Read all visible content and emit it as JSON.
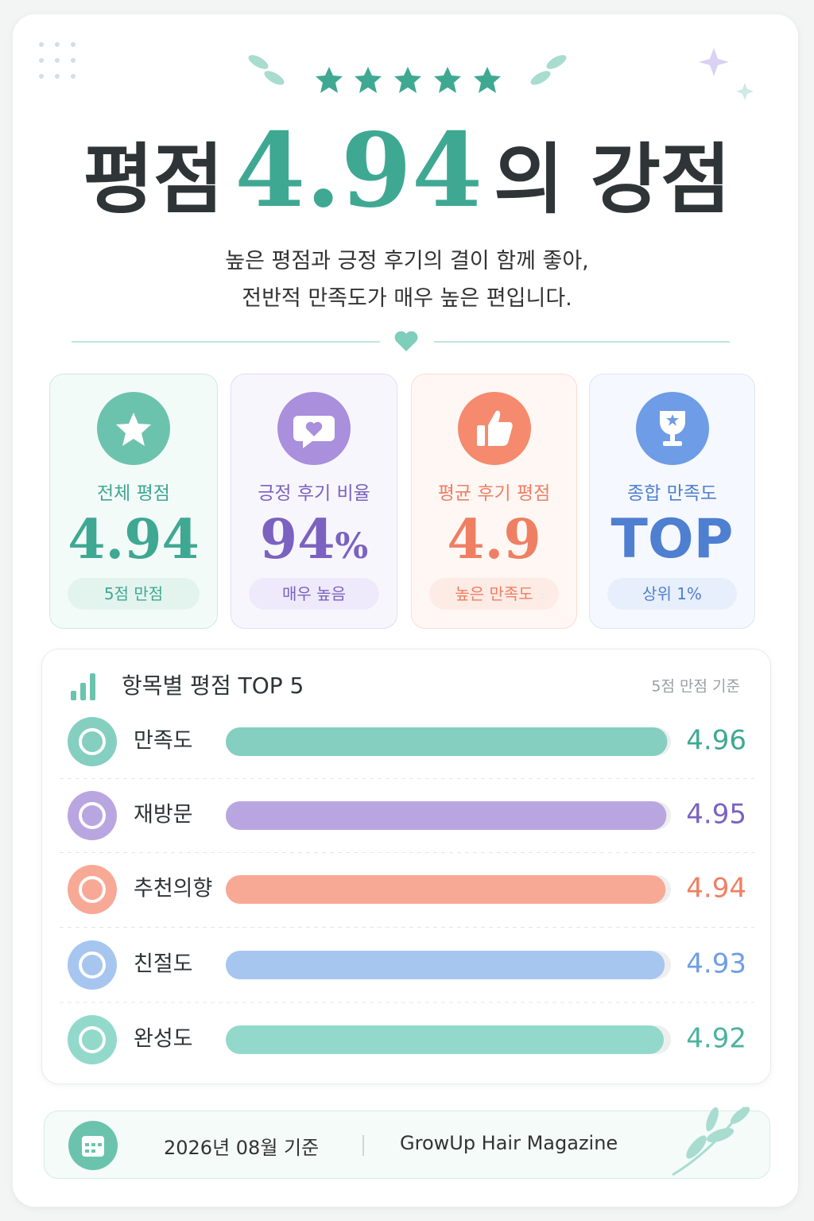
{
  "header": {
    "title_prefix": "평점",
    "title_score": "4.94",
    "title_suffix": "의 강점",
    "subtitle_lines": [
      "높은 평점과 긍정 후기의 결이 함께 좋아,",
      "전반적 만족도가 매우 높은 편입니다."
    ]
  },
  "cards": [
    {
      "label": "전체 평점",
      "value": "4.94",
      "badge": "5점 만점"
    },
    {
      "label": "긍정 후기 비율",
      "value": "94",
      "unit": "%",
      "badge": "매우 높음"
    },
    {
      "label": "평균 후기 평점",
      "value": "4.9",
      "badge": "높은 만족도"
    },
    {
      "label": "종합 만족도",
      "value": "TOP",
      "badge": "상위 1%"
    }
  ],
  "chart_data": {
    "type": "bar",
    "orientation": "horizontal",
    "title": "항목별 평점 TOP 5",
    "subtitle": "5점 만점 기준",
    "categories": [
      "만족도",
      "재방문",
      "추천의향",
      "친절도",
      "완성도"
    ],
    "values": [
      4.96,
      4.95,
      4.94,
      4.93,
      4.92
    ],
    "colors": [
      "#84cfc0",
      "#b9a6e0",
      "#f7a996",
      "#a6c6ef",
      "#93d9cb"
    ],
    "label_colors": [
      "#3fa893",
      "#7b62c0",
      "#ef7f63",
      "#6f9ee3",
      "#4bb39f"
    ],
    "xlim": [
      0,
      5
    ]
  },
  "footer": {
    "date": "2026년 08월 기준",
    "source": "GrowUp Hair Magazine"
  }
}
